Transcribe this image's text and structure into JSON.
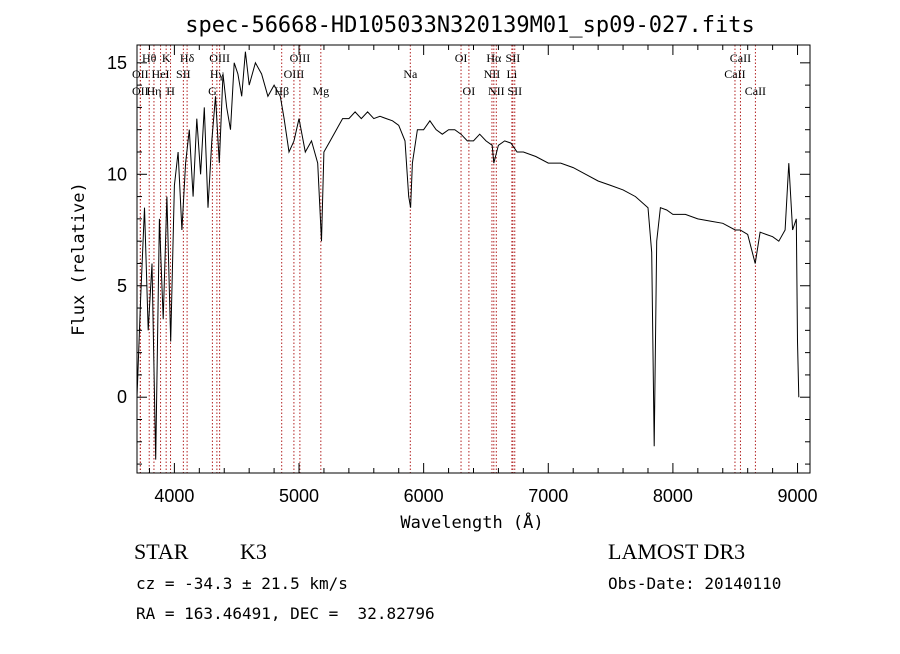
{
  "chart_data": {
    "type": "line",
    "title": "spec-56668-HD105033N320139M01_sp09-027.fits",
    "xlabel": "Wavelength (Å)",
    "ylabel": "Flux (relative)",
    "xlim": [
      3700,
      9100
    ],
    "ylim": [
      -3.4,
      15.8
    ],
    "xticks": [
      4000,
      5000,
      6000,
      7000,
      8000,
      9000
    ],
    "yticks": [
      0,
      5,
      10,
      15
    ],
    "grid": false,
    "line_color": "#000000",
    "marker_color": "#b22222",
    "series": [
      {
        "name": "flux",
        "x": [
          3700,
          3730,
          3760,
          3790,
          3820,
          3850,
          3880,
          3910,
          3940,
          3970,
          4000,
          4030,
          4060,
          4090,
          4120,
          4150,
          4180,
          4210,
          4240,
          4270,
          4300,
          4330,
          4360,
          4390,
          4420,
          4450,
          4480,
          4510,
          4540,
          4570,
          4600,
          4650,
          4700,
          4750,
          4800,
          4850,
          4880,
          4920,
          4960,
          5000,
          5050,
          5100,
          5150,
          5180,
          5200,
          5250,
          5300,
          5350,
          5400,
          5450,
          5500,
          5550,
          5600,
          5650,
          5700,
          5750,
          5800,
          5850,
          5880,
          5895,
          5910,
          5950,
          6000,
          6050,
          6100,
          6150,
          6200,
          6250,
          6300,
          6350,
          6400,
          6450,
          6500,
          6550,
          6563,
          6600,
          6650,
          6700,
          6750,
          6800,
          6900,
          7000,
          7100,
          7200,
          7300,
          7400,
          7500,
          7600,
          7700,
          7800,
          7830,
          7850,
          7870,
          7900,
          7950,
          8000,
          8100,
          8200,
          8300,
          8400,
          8500,
          8540,
          8600,
          8660,
          8700,
          8750,
          8800,
          8850,
          8900,
          8930,
          8960,
          8990,
          9000,
          9010
        ],
        "y": [
          0,
          4.5,
          8.5,
          3.0,
          6.0,
          -2.8,
          8.0,
          3.5,
          9.0,
          2.5,
          9.5,
          11.0,
          7.5,
          10.5,
          12.0,
          9.0,
          12.5,
          10.0,
          13.0,
          8.5,
          11.5,
          13.5,
          10.5,
          14.5,
          13.0,
          12.0,
          15.0,
          14.5,
          13.5,
          15.5,
          14.0,
          15.0,
          14.5,
          13.5,
          14.0,
          13.5,
          12.5,
          11.0,
          11.5,
          12.5,
          11.0,
          11.5,
          10.5,
          7.0,
          11.0,
          11.5,
          12.0,
          12.5,
          12.5,
          12.8,
          12.5,
          12.8,
          12.5,
          12.6,
          12.5,
          12.4,
          12.2,
          11.5,
          9.0,
          8.5,
          10.5,
          12.0,
          12.0,
          12.4,
          12.0,
          11.8,
          12.0,
          12.0,
          11.8,
          11.5,
          11.5,
          11.8,
          11.5,
          11.3,
          10.5,
          11.3,
          11.5,
          11.4,
          11.0,
          11.0,
          10.8,
          10.5,
          10.5,
          10.3,
          10.0,
          9.7,
          9.5,
          9.3,
          9.0,
          8.5,
          6.5,
          -2.2,
          7.0,
          8.5,
          8.4,
          8.2,
          8.2,
          8.0,
          7.9,
          7.8,
          7.5,
          7.5,
          7.3,
          6.0,
          7.4,
          7.3,
          7.2,
          7.0,
          7.5,
          10.5,
          7.5,
          8.0,
          2.5,
          0.0
        ]
      }
    ],
    "spectral_lines": [
      {
        "label": "Hθ",
        "wavelength": 3798,
        "row": 1
      },
      {
        "label": "OII",
        "wavelength": 3727,
        "row": 2
      },
      {
        "label": "OII",
        "wavelength": 3727,
        "row": 3
      },
      {
        "label": "Hη",
        "wavelength": 3836,
        "row": 3
      },
      {
        "label": "K",
        "wavelength": 3934,
        "row": 1
      },
      {
        "label": "HeI",
        "wavelength": 3889,
        "row": 2
      },
      {
        "label": "H",
        "wavelength": 3969,
        "row": 3
      },
      {
        "label": "Hδ",
        "wavelength": 4102,
        "row": 1
      },
      {
        "label": "SII",
        "wavelength": 4072,
        "row": 2
      },
      {
        "label": "OIII",
        "wavelength": 4363,
        "row": 1
      },
      {
        "label": "Hγ",
        "wavelength": 4341,
        "row": 2
      },
      {
        "label": "G",
        "wavelength": 4305,
        "row": 3
      },
      {
        "label": "OIII",
        "wavelength": 5007,
        "row": 1
      },
      {
        "label": "OIII",
        "wavelength": 4959,
        "row": 2
      },
      {
        "label": "Hβ",
        "wavelength": 4861,
        "row": 3
      },
      {
        "label": "Mg",
        "wavelength": 5175,
        "row": 3
      },
      {
        "label": "Na",
        "wavelength": 5893,
        "row": 2
      },
      {
        "label": "OI",
        "wavelength": 6300,
        "row": 1
      },
      {
        "label": "OI",
        "wavelength": 6363,
        "row": 3
      },
      {
        "label": "Hα",
        "wavelength": 6563,
        "row": 1
      },
      {
        "label": "SII",
        "wavelength": 6716,
        "row": 1
      },
      {
        "label": "NII",
        "wavelength": 6548,
        "row": 2
      },
      {
        "label": "Li",
        "wavelength": 6708,
        "row": 2
      },
      {
        "label": "NII",
        "wavelength": 6583,
        "row": 3
      },
      {
        "label": "SII",
        "wavelength": 6731,
        "row": 3
      },
      {
        "label": "CaII",
        "wavelength": 8542,
        "row": 1
      },
      {
        "label": "CaII",
        "wavelength": 8498,
        "row": 2
      },
      {
        "label": "CaII",
        "wavelength": 8662,
        "row": 3
      }
    ]
  },
  "info": {
    "object_class": "STAR",
    "subclass": "K3",
    "survey": "LAMOST DR3",
    "redshift_text": "cz = -34.3 ± 21.5 km/s",
    "obs_date_text": "Obs-Date: 20140110",
    "coords_text": "RA = 163.46491, DEC =  32.82796"
  }
}
